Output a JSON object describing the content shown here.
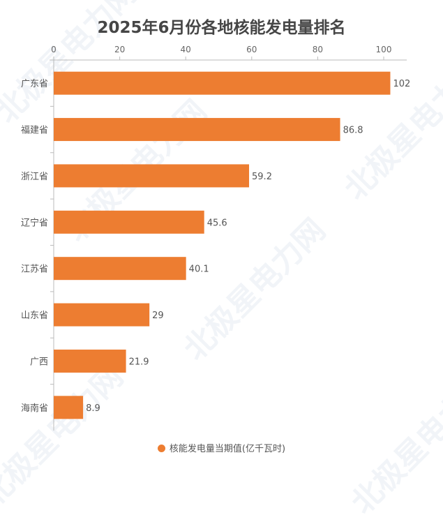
{
  "watermark": "北极星电力网",
  "chart_data": {
    "type": "bar",
    "orientation": "horizontal",
    "title": "2025年6月份各地核能发电量排名",
    "categories": [
      "广东省",
      "福建省",
      "浙江省",
      "辽宁省",
      "江苏省",
      "山东省",
      "广西",
      "海南省"
    ],
    "series": [
      {
        "name": "核能发电量当期值(亿千瓦时)",
        "values": [
          102,
          86.8,
          59.2,
          45.6,
          40.1,
          29,
          21.9,
          8.9
        ],
        "color": "#ED7D31"
      }
    ],
    "xticks": [
      0,
      20,
      40,
      60,
      80,
      100
    ],
    "xlim": [
      0,
      107
    ],
    "axis_position": "top",
    "grid": false,
    "legend": "bottom"
  }
}
